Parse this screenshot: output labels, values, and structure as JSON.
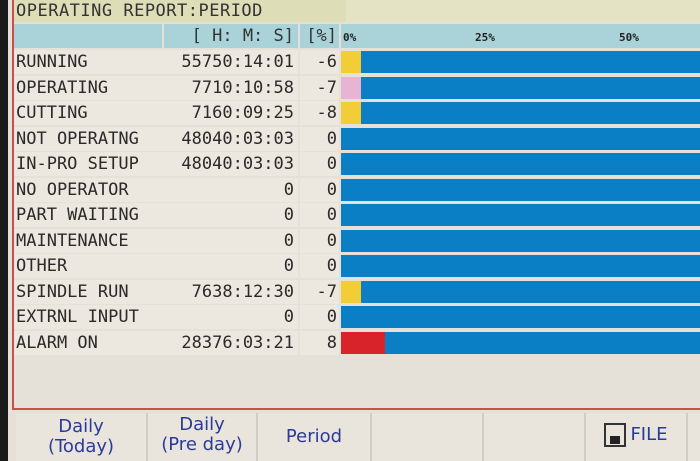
{
  "title": "OPERATING REPORT:PERIOD",
  "header": {
    "time": "[ H: M: S]",
    "percent": "[%]"
  },
  "scale": [
    "0%",
    "25%",
    "50%"
  ],
  "colors": {
    "bar": "#0a7fc6",
    "yellow": "#f2cd36",
    "pink": "#e7b5d3",
    "red": "#d9232a"
  },
  "rows": [
    {
      "label": "RUNNING",
      "time": "55750:14:01",
      "percent": "-6",
      "segment": "yellow"
    },
    {
      "label": "OPERATING",
      "time": "7710:10:58",
      "percent": "-7",
      "segment": "pink"
    },
    {
      "label": "CUTTING",
      "time": "7160:09:25",
      "percent": "-8",
      "segment": "yellow"
    },
    {
      "label": "NOT OPERATNG",
      "time": "48040:03:03",
      "percent": "0",
      "segment": ""
    },
    {
      "label": "IN-PRO SETUP",
      "time": "48040:03:03",
      "percent": "0",
      "segment": ""
    },
    {
      "label": "NO OPERATOR",
      "time": "0",
      "percent": "0",
      "segment": ""
    },
    {
      "label": "PART WAITING",
      "time": "0",
      "percent": "0",
      "segment": ""
    },
    {
      "label": "MAINTENANCE",
      "time": "0",
      "percent": "0",
      "segment": ""
    },
    {
      "label": "OTHER",
      "time": "0",
      "percent": "0",
      "segment": ""
    },
    {
      "label": "SPINDLE RUN",
      "time": "7638:12:30",
      "percent": "-7",
      "segment": "yellow"
    },
    {
      "label": "EXTRNL INPUT",
      "time": "0",
      "percent": "0",
      "segment": ""
    },
    {
      "label": "ALARM ON",
      "time": "28376:03:21",
      "percent": "8",
      "segment": "red"
    }
  ],
  "softkeys": {
    "daily_today": [
      "Daily",
      "(Today)"
    ],
    "daily_preday": [
      "Daily",
      "(Pre day)"
    ],
    "period": "Period",
    "file": "FILE"
  }
}
